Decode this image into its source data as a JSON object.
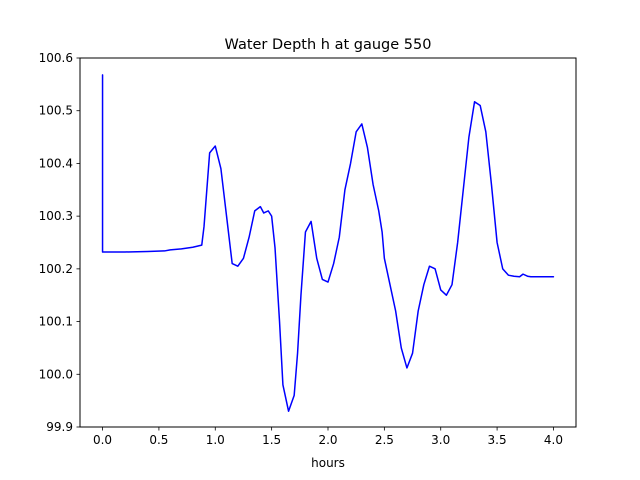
{
  "chart_data": {
    "type": "line",
    "title": "Water Depth h at gauge 550",
    "xlabel": "hours",
    "ylabel": "",
    "xlim": [
      -0.2,
      4.2
    ],
    "ylim": [
      99.9,
      100.6
    ],
    "xticks": [
      0.0,
      0.5,
      1.0,
      1.5,
      2.0,
      2.5,
      3.0,
      3.5,
      4.0
    ],
    "xtick_labels": [
      "0.0",
      "0.5",
      "1.0",
      "1.5",
      "2.0",
      "2.5",
      "3.0",
      "3.5",
      "4.0"
    ],
    "yticks": [
      99.9,
      100.0,
      100.1,
      100.2,
      100.3,
      100.4,
      100.5,
      100.6
    ],
    "ytick_labels": [
      "99.9",
      "100.0",
      "100.1",
      "100.2",
      "100.3",
      "100.4",
      "100.5",
      "100.6"
    ],
    "grid": false,
    "series": [
      {
        "color": "#0000ff",
        "x": [
          0.0,
          0.0,
          0.0,
          0.2,
          0.4,
          0.55,
          0.6,
          0.7,
          0.8,
          0.88,
          0.9,
          0.95,
          1.0,
          1.05,
          1.1,
          1.15,
          1.2,
          1.25,
          1.3,
          1.35,
          1.4,
          1.43,
          1.47,
          1.5,
          1.53,
          1.57,
          1.6,
          1.65,
          1.7,
          1.73,
          1.76,
          1.8,
          1.85,
          1.9,
          1.95,
          2.0,
          2.05,
          2.1,
          2.15,
          2.2,
          2.25,
          2.3,
          2.35,
          2.4,
          2.45,
          2.48,
          2.5,
          2.55,
          2.6,
          2.65,
          2.7,
          2.75,
          2.8,
          2.85,
          2.9,
          2.95,
          3.0,
          3.05,
          3.1,
          3.15,
          3.2,
          3.25,
          3.3,
          3.35,
          3.4,
          3.45,
          3.5,
          3.55,
          3.6,
          3.65,
          3.7,
          3.73,
          3.77,
          3.8,
          3.85,
          3.9,
          3.95,
          3.98,
          4.0
        ],
        "y": [
          100.568,
          100.232,
          100.232,
          100.232,
          100.233,
          100.234,
          100.236,
          100.238,
          100.241,
          100.245,
          100.28,
          100.42,
          100.433,
          100.39,
          100.3,
          100.21,
          100.205,
          100.22,
          100.26,
          100.31,
          100.318,
          100.306,
          100.31,
          100.3,
          100.24,
          100.1,
          99.98,
          99.93,
          99.96,
          100.04,
          100.15,
          100.27,
          100.29,
          100.22,
          100.18,
          100.175,
          100.21,
          100.26,
          100.35,
          100.4,
          100.46,
          100.475,
          100.43,
          100.36,
          100.31,
          100.27,
          100.22,
          100.17,
          100.12,
          100.05,
          100.012,
          100.04,
          100.12,
          100.17,
          100.205,
          100.2,
          100.16,
          100.15,
          100.17,
          100.25,
          100.35,
          100.45,
          100.517,
          100.51,
          100.46,
          100.36,
          100.25,
          100.2,
          100.188,
          100.186,
          100.185,
          100.19,
          100.186,
          100.185,
          100.185,
          100.185,
          100.185,
          100.185,
          100.185
        ]
      }
    ]
  }
}
